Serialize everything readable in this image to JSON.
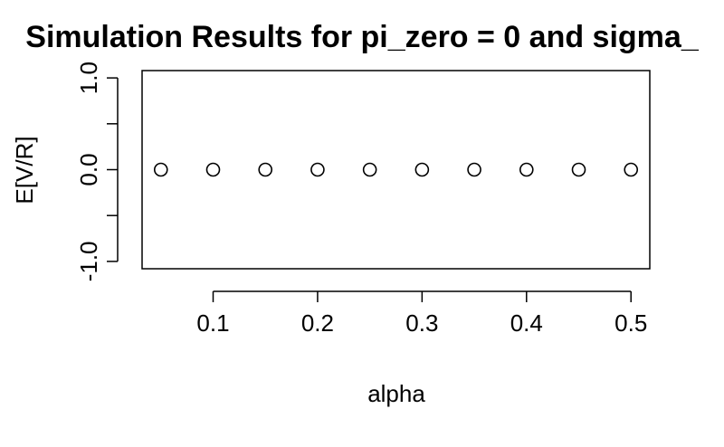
{
  "chart_data": {
    "type": "scatter",
    "title": "Simulation Results for pi_zero = 0 and sigma_",
    "xlabel": "alpha",
    "ylabel": "E[V/R]",
    "x": [
      0.05,
      0.1,
      0.15,
      0.2,
      0.25,
      0.3,
      0.35,
      0.4,
      0.45,
      0.5
    ],
    "y": [
      0,
      0,
      0,
      0,
      0,
      0,
      0,
      0,
      0,
      0
    ],
    "xticks": [
      0.1,
      0.2,
      0.3,
      0.4,
      0.5
    ],
    "xtick_labels": [
      "0.1",
      "0.2",
      "0.3",
      "0.4",
      "0.5"
    ],
    "yticks": [
      -1.0,
      -0.5,
      0.0,
      0.5,
      1.0
    ],
    "ytick_labels": [
      "-1.0",
      "",
      "0.0",
      "",
      "1.0"
    ],
    "xlim": [
      0.032,
      0.518
    ],
    "ylim": [
      -1.08,
      1.08
    ],
    "grid": false,
    "marker": "open-circle"
  }
}
